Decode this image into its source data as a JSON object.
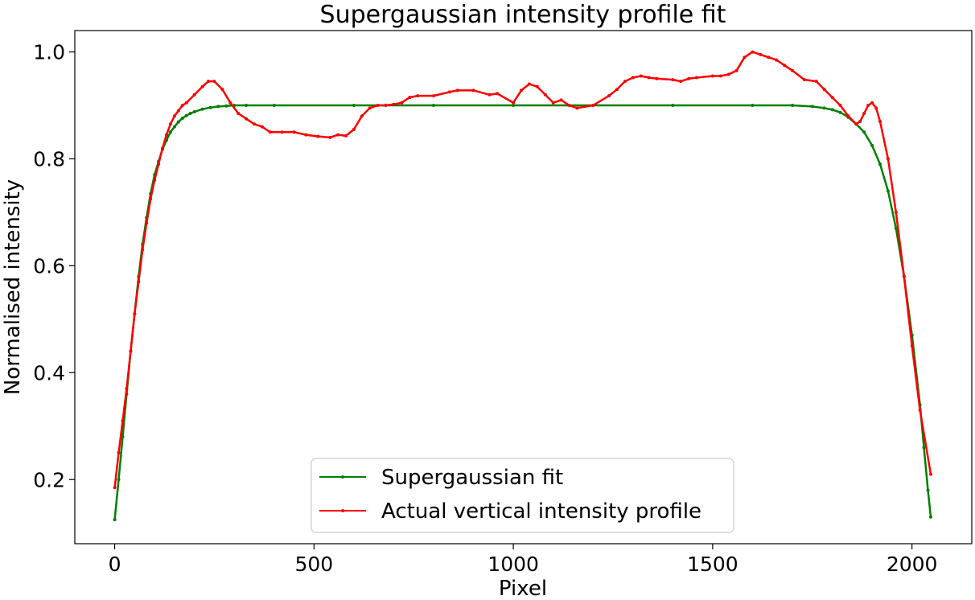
{
  "chart_data": {
    "type": "line",
    "title": "Supergaussian intensity profile fit",
    "xlabel": "Pixel",
    "ylabel": "Normalised intensity",
    "xlim": [
      -100,
      2150
    ],
    "ylim": [
      0.08,
      1.04
    ],
    "xticks": [
      0,
      500,
      1000,
      1500,
      2000
    ],
    "yticks": [
      0.2,
      0.4,
      0.6,
      0.8,
      1.0
    ],
    "xtick_labels": [
      "0",
      "500",
      "1000",
      "1500",
      "2000"
    ],
    "ytick_labels": [
      "0.2",
      "0.4",
      "0.6",
      "0.8",
      "1.0"
    ],
    "grid": false,
    "legend_position": "lower-center",
    "series": [
      {
        "name": "Supergaussian fit",
        "color": "#008000",
        "x": [
          0,
          10,
          20,
          30,
          40,
          50,
          60,
          70,
          80,
          90,
          100,
          110,
          120,
          130,
          140,
          150,
          160,
          170,
          180,
          190,
          200,
          220,
          240,
          260,
          280,
          300,
          330,
          400,
          600,
          800,
          1000,
          1200,
          1400,
          1600,
          1700,
          1750,
          1780,
          1800,
          1820,
          1840,
          1860,
          1880,
          1900,
          1920,
          1940,
          1960,
          1980,
          2000,
          2020,
          2030,
          2040,
          2047
        ],
        "y": [
          0.125,
          0.2,
          0.28,
          0.36,
          0.44,
          0.51,
          0.58,
          0.64,
          0.69,
          0.735,
          0.77,
          0.795,
          0.818,
          0.835,
          0.85,
          0.86,
          0.869,
          0.876,
          0.881,
          0.885,
          0.888,
          0.893,
          0.896,
          0.898,
          0.899,
          0.9,
          0.9,
          0.9,
          0.9,
          0.9,
          0.9,
          0.9,
          0.9,
          0.9,
          0.9,
          0.898,
          0.895,
          0.892,
          0.887,
          0.878,
          0.865,
          0.85,
          0.825,
          0.79,
          0.74,
          0.67,
          0.58,
          0.47,
          0.34,
          0.26,
          0.18,
          0.13
        ]
      },
      {
        "name": "Actual vertical intensity profile",
        "color": "#ff0000",
        "x": [
          0,
          10,
          20,
          30,
          40,
          50,
          60,
          70,
          80,
          90,
          100,
          110,
          120,
          130,
          140,
          150,
          160,
          170,
          180,
          200,
          220,
          235,
          250,
          270,
          290,
          310,
          330,
          350,
          370,
          390,
          420,
          450,
          480,
          510,
          540,
          560,
          580,
          600,
          620,
          640,
          660,
          680,
          700,
          720,
          740,
          760,
          800,
          840,
          860,
          900,
          940,
          960,
          1000,
          1020,
          1040,
          1060,
          1080,
          1100,
          1120,
          1140,
          1160,
          1200,
          1240,
          1260,
          1280,
          1300,
          1320,
          1340,
          1360,
          1400,
          1420,
          1440,
          1460,
          1500,
          1520,
          1540,
          1560,
          1580,
          1600,
          1620,
          1640,
          1660,
          1680,
          1700,
          1730,
          1760,
          1780,
          1800,
          1820,
          1840,
          1860,
          1870,
          1880,
          1890,
          1900,
          1910,
          1920,
          1940,
          1960,
          1980,
          2000,
          2020,
          2047
        ],
        "y": [
          0.185,
          0.25,
          0.31,
          0.37,
          0.44,
          0.51,
          0.57,
          0.63,
          0.68,
          0.725,
          0.76,
          0.79,
          0.82,
          0.845,
          0.865,
          0.88,
          0.89,
          0.9,
          0.905,
          0.92,
          0.935,
          0.945,
          0.945,
          0.93,
          0.905,
          0.885,
          0.875,
          0.865,
          0.86,
          0.85,
          0.85,
          0.85,
          0.845,
          0.842,
          0.84,
          0.845,
          0.843,
          0.855,
          0.88,
          0.895,
          0.9,
          0.9,
          0.902,
          0.905,
          0.915,
          0.918,
          0.918,
          0.925,
          0.928,
          0.928,
          0.92,
          0.922,
          0.905,
          0.928,
          0.94,
          0.935,
          0.92,
          0.905,
          0.91,
          0.9,
          0.895,
          0.9,
          0.918,
          0.93,
          0.945,
          0.952,
          0.955,
          0.952,
          0.95,
          0.948,
          0.945,
          0.95,
          0.952,
          0.955,
          0.955,
          0.958,
          0.965,
          0.99,
          1.0,
          0.995,
          0.99,
          0.985,
          0.975,
          0.965,
          0.948,
          0.945,
          0.93,
          0.915,
          0.9,
          0.88,
          0.865,
          0.87,
          0.885,
          0.9,
          0.905,
          0.895,
          0.87,
          0.8,
          0.7,
          0.58,
          0.45,
          0.33,
          0.21
        ]
      }
    ]
  }
}
